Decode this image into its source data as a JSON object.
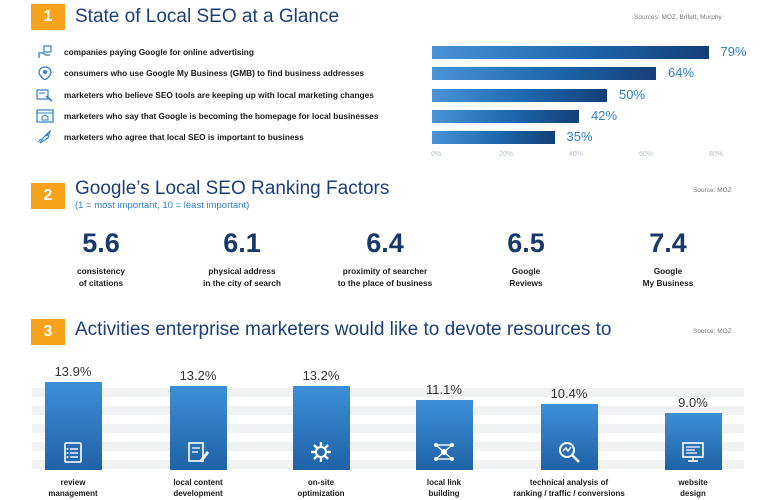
{
  "colors": {
    "accent": "#f7a21b",
    "title": "#1c3f7a",
    "bar_dark": "#143f78",
    "bar_light": "#4a93d6",
    "percent_blue": "#2d7fc2"
  },
  "section1": {
    "number": "1",
    "title": "State of Local SEO at a Glance",
    "source": "Sources: MOZ, Brifett, Murphy",
    "rows": [
      {
        "icon": "hand-money-icon",
        "label": "companies paying Google for online advertising"
      },
      {
        "icon": "location-pin-icon",
        "label": "consumers who use Google My Business (GMB) to find business addresses"
      },
      {
        "icon": "tools-icon",
        "label": "marketers who believe SEO tools are keeping up with local marketing changes"
      },
      {
        "icon": "browser-home-icon",
        "label": "marketers who say that Google is becoming the homepage for local businesses"
      },
      {
        "icon": "rocket-icon",
        "label": "marketers who agree that local SEO is important to business"
      }
    ],
    "percent_labels": [
      "79%",
      "64%",
      "50%",
      "42%",
      "35%"
    ],
    "tick_labels": [
      "0%",
      "20%",
      "40%",
      "60%",
      "80%"
    ]
  },
  "section2": {
    "number": "2",
    "title": "Google’s Local SEO Ranking Factors",
    "subtitle": "(1 = most important, 10 = least important)",
    "source": "Source: MOZ",
    "factors": [
      {
        "value": "5.6",
        "line1": "consistency",
        "line2": "of citations"
      },
      {
        "value": "6.1",
        "line1": "physical address",
        "line2": "in the city of search"
      },
      {
        "value": "6.4",
        "line1": "proximity of searcher",
        "line2": "to the place of business"
      },
      {
        "value": "6.5",
        "line1": "Google",
        "line2": "Reviews"
      },
      {
        "value": "7.4",
        "line1": "Google",
        "line2": "My Business"
      }
    ]
  },
  "section3": {
    "number": "3",
    "title": "Activities enterprise marketers would like to devote resources to",
    "source": "Source: MOZ",
    "labels": [
      {
        "pct": "13.9%",
        "line1": "review",
        "line2": "management",
        "icon": "checklist-icon"
      },
      {
        "pct": "13.2%",
        "line1": "local content",
        "line2": "development",
        "icon": "edit-document-icon"
      },
      {
        "pct": "13.2%",
        "line1": "on-site",
        "line2": "optimization",
        "icon": "gear-icon"
      },
      {
        "pct": "11.1%",
        "line1": "local link",
        "line2": "building",
        "icon": "network-icon"
      },
      {
        "pct": "10.4%",
        "line1": "technical analysis of",
        "line2": "ranking / traffic / conversions",
        "icon": "magnifier-chart-icon"
      },
      {
        "pct": "9.0%",
        "line1": "website",
        "line2": "design",
        "icon": "monitor-icon"
      }
    ]
  },
  "chart_data": [
    {
      "type": "bar",
      "orientation": "horizontal",
      "title": "State of Local SEO at a Glance",
      "categories": [
        "companies paying Google for online advertising",
        "consumers who use Google My Business (GMB) to find business addresses",
        "marketers who believe SEO tools are keeping up with local marketing changes",
        "marketers who say that Google is becoming the homepage for local businesses",
        "marketers who agree that local SEO is important to business"
      ],
      "values": [
        79,
        64,
        50,
        42,
        35
      ],
      "xlim": [
        0,
        80
      ],
      "grid": false
    },
    {
      "type": "table",
      "title": "Google’s Local SEO Ranking Factors",
      "categories": [
        "consistency of citations",
        "physical address in the city of search",
        "proximity of searcher to the place of business",
        "Google Reviews",
        "Google My Business"
      ],
      "values": [
        5.6,
        6.1,
        6.4,
        6.5,
        7.4
      ]
    },
    {
      "type": "bar",
      "orientation": "vertical",
      "title": "Activities enterprise marketers would like to devote resources to",
      "categories": [
        "review management",
        "local content development",
        "on-site optimization",
        "local link building",
        "technical analysis of ranking / traffic / conversions",
        "website design"
      ],
      "values": [
        13.9,
        13.2,
        13.2,
        11.1,
        10.4,
        9.0
      ],
      "grid": false
    }
  ]
}
